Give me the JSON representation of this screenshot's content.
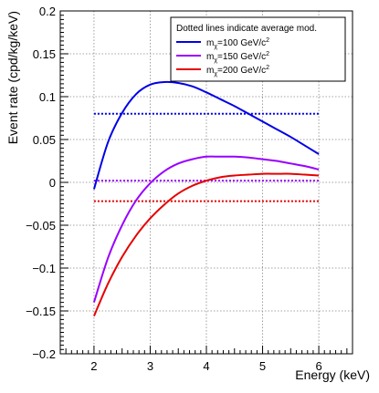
{
  "chart_data": {
    "type": "line",
    "title": "",
    "xlabel": "Energy (keV)",
    "ylabel": "Event rate (cpd/kg/keV)",
    "xlim": [
      1.4,
      6.6
    ],
    "ylim": [
      -0.2,
      0.2
    ],
    "x_ticks": [
      2,
      3,
      4,
      5,
      6
    ],
    "x_tick_labels": [
      "2",
      "3",
      "4",
      "5",
      "6"
    ],
    "y_ticks": [
      -0.2,
      -0.15,
      -0.1,
      -0.05,
      0,
      0.05,
      0.1,
      0.15,
      0.2
    ],
    "y_tick_labels": [
      "−0.2",
      "−0.15",
      "−0.1",
      "−0.05",
      "0",
      "0.05",
      "0.1",
      "0.15",
      "0.2"
    ],
    "grid": true,
    "legend": {
      "placement": "top-right",
      "header": "Dotted lines indicate average mod.",
      "entries": [
        {
          "prefix": "m",
          "sub": "χ",
          "mid": "=100 GeV/c",
          "sup": "2"
        },
        {
          "prefix": "m",
          "sub": "χ",
          "mid": "=150 GeV/c",
          "sup": "2"
        },
        {
          "prefix": "m",
          "sub": "χ",
          "mid": "=200 GeV/c",
          "sup": "2"
        }
      ]
    },
    "series": [
      {
        "color": "#0000e6",
        "x": [
          2.0,
          2.25,
          2.5,
          2.75,
          3.0,
          3.25,
          3.5,
          3.75,
          4.0,
          4.25,
          4.5,
          4.75,
          5.0,
          5.25,
          5.5,
          5.75,
          6.0
        ],
        "y": [
          -0.008,
          0.047,
          0.081,
          0.103,
          0.114,
          0.117,
          0.116,
          0.112,
          0.105,
          0.097,
          0.089,
          0.08,
          0.071,
          0.062,
          0.053,
          0.043,
          0.033
        ],
        "average": 0.08
      },
      {
        "color": "#9900ff",
        "x": [
          2.0,
          2.25,
          2.5,
          2.75,
          3.0,
          3.25,
          3.5,
          3.75,
          4.0,
          4.25,
          4.5,
          4.75,
          5.0,
          5.25,
          5.5,
          5.75,
          6.0
        ],
        "y": [
          -0.14,
          -0.088,
          -0.05,
          -0.021,
          -0.001,
          0.013,
          0.022,
          0.027,
          0.03,
          0.03,
          0.03,
          0.029,
          0.027,
          0.025,
          0.022,
          0.019,
          0.015
        ],
        "average": 0.002
      },
      {
        "color": "#e60000",
        "x": [
          2.0,
          2.25,
          2.5,
          2.75,
          3.0,
          3.25,
          3.5,
          3.75,
          4.0,
          4.25,
          4.5,
          4.75,
          5.0,
          5.25,
          5.5,
          5.75,
          6.0
        ],
        "y": [
          -0.156,
          -0.118,
          -0.087,
          -0.062,
          -0.042,
          -0.026,
          -0.013,
          -0.004,
          0.002,
          0.006,
          0.008,
          0.009,
          0.01,
          0.01,
          0.01,
          0.009,
          0.008
        ],
        "average": -0.022
      }
    ]
  }
}
